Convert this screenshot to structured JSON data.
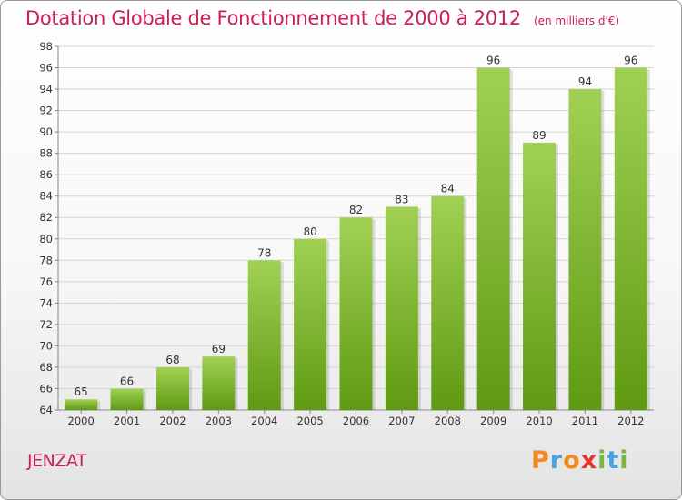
{
  "header": {
    "title": "Dotation Globale de Fonctionnement de 2000 à 2012",
    "subtitle": "(en milliers d'€)"
  },
  "footer": {
    "commune": "JENZAT",
    "brand": "Proxiti"
  },
  "colors": {
    "title": "#cc1e50",
    "bar_light": "#a1d154",
    "bar_dark": "#5f9a12",
    "grid": "#d4d4d4",
    "axis_text": "#333333",
    "brand_letters": [
      "#f28a1b",
      "#4aa3df",
      "#f28a1b",
      "#e8342e",
      "#7cb342",
      "#4aa3df",
      "#7cb342"
    ]
  },
  "chart_data": {
    "type": "bar",
    "categories": [
      "2000",
      "2001",
      "2002",
      "2003",
      "2004",
      "2005",
      "2006",
      "2007",
      "2008",
      "2009",
      "2010",
      "2011",
      "2012"
    ],
    "values": [
      65,
      66,
      68,
      69,
      78,
      80,
      82,
      83,
      84,
      96,
      89,
      94,
      96
    ],
    "ylim": [
      64,
      98
    ],
    "yticks": [
      64,
      66,
      68,
      70,
      72,
      74,
      76,
      78,
      80,
      82,
      84,
      86,
      88,
      90,
      92,
      94,
      96,
      98
    ],
    "grid": true,
    "data_labels": true,
    "legend": "none"
  }
}
